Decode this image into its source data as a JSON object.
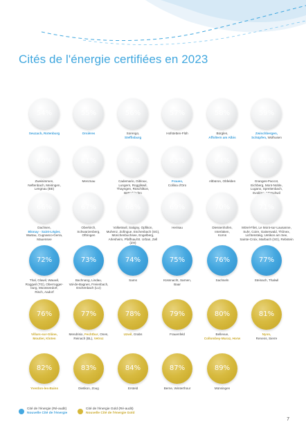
{
  "title": "Cités de l'énergie certifiées en 2023",
  "colors": {
    "blue": "#45a8e0",
    "gold": "#d6b83a",
    "grey": "#e6e7e8",
    "title": "#3ea6de"
  },
  "rows": [
    [
      {
        "pct": "54%",
        "style": "grey",
        "lines": [
          [
            {
              "t": "Seuzach, Rotenburg",
              "c": "b"
            }
          ]
        ]
      },
      {
        "pct": "55%",
        "style": "grey",
        "lines": [
          [
            {
              "t": "Orsières",
              "c": "b"
            }
          ]
        ]
      },
      {
        "pct": "56%",
        "style": "grey",
        "lines": [
          [
            {
              "t": "Sorengo,",
              "c": ""
            }
          ],
          [
            {
              "t": "Steffisburg",
              "c": "b"
            }
          ]
        ]
      },
      {
        "pct": "57%",
        "style": "grey",
        "lines": [
          [
            {
              "t": "Hofstetten-Flüh",
              "c": ""
            }
          ]
        ]
      },
      {
        "pct": "58%",
        "style": "grey",
        "lines": [
          [
            {
              "t": "Bürglen,",
              "c": ""
            }
          ],
          [
            {
              "t": "Affoltern am Albis",
              "c": "b"
            }
          ]
        ]
      },
      {
        "pct": "59%",
        "style": "grey",
        "lines": [
          [
            {
              "t": "Zwischbergen,",
              "c": "b"
            }
          ],
          [
            {
              "t": "Schüpfen,",
              "c": "b"
            },
            {
              "t": " Wolhusen",
              "c": ""
            }
          ]
        ]
      }
    ],
    [
      {
        "pct": "60%",
        "style": "grey",
        "lines": [
          [
            {
              "t": "Zweisimmen,",
              "c": ""
            }
          ],
          [
            {
              "t": "Neftenbach, Meiringen,",
              "c": ""
            }
          ],
          [
            {
              "t": "Lengnau (BE)",
              "c": ""
            }
          ]
        ]
      },
      {
        "pct": "61%",
        "style": "grey",
        "lines": [
          [
            {
              "t": "Menznau",
              "c": ""
            }
          ]
        ]
      },
      {
        "pct": "62%",
        "style": "grey",
        "lines": [
          [
            {
              "t": "Cademario, Gibloux,",
              "c": ""
            }
          ],
          [
            {
              "t": "Lungern, Roggliswil,",
              "c": ""
            }
          ],
          [
            {
              "t": "Thayngen, Rüschlikon,",
              "c": ""
            }
          ],
          [
            {
              "t": "Bätterkinden",
              "c": ""
            }
          ]
        ]
      },
      {
        "pct": "63%",
        "style": "grey",
        "lines": [
          [
            {
              "t": "Fraues,",
              "c": "b"
            }
          ],
          [
            {
              "t": "Collina d'Oro",
              "c": ""
            }
          ]
        ]
      },
      {
        "pct": "64%",
        "style": "grey",
        "lines": [
          [
            {
              "t": "Altbüron, Obfelden",
              "c": ""
            }
          ]
        ]
      },
      {
        "pct": "65%",
        "style": "grey",
        "lines": [
          [
            {
              "t": "Granges-Paccot,",
              "c": ""
            }
          ],
          [
            {
              "t": "Eichberg, Mont-Noble,",
              "c": ""
            }
          ],
          [
            {
              "t": "Lugano, Spreitenbach,",
              "c": ""
            }
          ],
          [
            {
              "t": "Evolène, Mörschwil",
              "c": ""
            }
          ]
        ]
      }
    ],
    [
      {
        "pct": "66%",
        "style": "grey",
        "lines": [
          [
            {
              "t": "Dachsen,",
              "c": ""
            }
          ],
          [
            {
              "t": "Blonay - Saint-Légier,",
              "c": "b"
            }
          ],
          [
            {
              "t": "Wartau, Cugnasco-Gerra,",
              "c": ""
            }
          ],
          [
            {
              "t": "Mauensee",
              "c": ""
            }
          ]
        ]
      },
      {
        "pct": "67%",
        "style": "grey",
        "lines": [
          [
            {
              "t": "Oberkirch,",
              "c": ""
            }
          ],
          [
            {
              "t": "Schwarzenberg,",
              "c": ""
            }
          ],
          [
            {
              "t": "Oftringen",
              "c": ""
            }
          ]
        ]
      },
      {
        "pct": "68%",
        "style": "grey",
        "lines": [
          [
            {
              "t": "Volketswil, Satigny, Opfikon,",
              "c": ""
            }
          ],
          [
            {
              "t": "Muhenz, Zofingue, Eschenbach (SG),",
              "c": ""
            }
          ],
          [
            {
              "t": "Münchenbuchsee, Engelberg,",
              "c": ""
            }
          ],
          [
            {
              "t": "Arlesheim, Pfaffnau/St. Urban, Zell (ZH)",
              "c": ""
            }
          ]
        ]
      },
      {
        "pct": "69%",
        "style": "grey",
        "lines": [
          [
            {
              "t": "Herisau",
              "c": ""
            }
          ]
        ]
      },
      {
        "pct": "70%",
        "style": "grey",
        "lines": [
          [
            {
              "t": "Diessenhofen,",
              "c": ""
            }
          ],
          [
            {
              "t": "Interlaken,",
              "c": ""
            }
          ],
          [
            {
              "t": "Korns",
              "c": ""
            }
          ]
        ]
      },
      {
        "pct": "71%",
        "style": "grey",
        "lines": [
          [
            {
              "t": "Mörel-Filet, Le Mont-sur-Lausanne,",
              "c": ""
            }
          ],
          [
            {
              "t": "Suhr, Coire, Gaiserwald, Thônex,",
              "c": ""
            }
          ],
          [
            {
              "t": "Lichtensteig, Uetikon am See,",
              "c": ""
            }
          ],
          [
            {
              "t": "Sainte-Croix, Marbach (SG), Rebstein",
              "c": ""
            }
          ]
        ]
      }
    ],
    [
      {
        "pct": "72%",
        "style": "blue",
        "lines": [
          [
            {
              "t": "Thal, Glawil, Wauwil,",
              "c": ""
            }
          ],
          [
            {
              "t": "Roggwil (TG), Oberrogger-",
              "c": ""
            }
          ],
          [
            {
              "t": "burg, Moosseedorf,",
              "c": ""
            }
          ],
          [
            {
              "t": "Risch, Aadorf",
              "c": ""
            }
          ]
        ]
      },
      {
        "pct": "73%",
        "style": "blue",
        "lines": [
          [
            {
              "t": "Bachnang, Lindau,",
              "c": ""
            }
          ],
          [
            {
              "t": "Val-de-Bagnes, Freienbach,",
              "c": ""
            }
          ],
          [
            {
              "t": "Eschenbach (LU)",
              "c": ""
            }
          ]
        ]
      },
      {
        "pct": "74%",
        "style": "blue",
        "lines": [
          [
            {
              "t": "Sams",
              "c": ""
            }
          ]
        ]
      },
      {
        "pct": "75%",
        "style": "blue",
        "lines": [
          [
            {
              "t": "Küssnacht, Sarnen,",
              "c": ""
            }
          ],
          [
            {
              "t": "Baar",
              "c": ""
            }
          ]
        ]
      },
      {
        "pct": "76%",
        "style": "blue",
        "lines": [
          [
            {
              "t": "Sachseln",
              "c": ""
            }
          ]
        ]
      },
      {
        "pct": "77%",
        "style": "blue",
        "lines": [
          [
            {
              "t": "Steinach, Thalwil",
              "c": ""
            }
          ]
        ]
      }
    ],
    [
      {
        "pct": "76%",
        "style": "gold",
        "lines": [
          [
            {
              "t": "Villars-sur-Glâne,",
              "c": "g"
            }
          ],
          [
            {
              "t": "Moutier, Kloten",
              "c": "g"
            }
          ]
        ]
      },
      {
        "pct": "77%",
        "style": "gold",
        "lines": [
          [
            {
              "t": "Mendrisio, ",
              "c": ""
            },
            {
              "t": "Fechtbur",
              "c": "g"
            },
            {
              "t": ", Ones,",
              "c": ""
            }
          ],
          [
            {
              "t": "Reinach (BL), ",
              "c": ""
            },
            {
              "t": "Vetroz",
              "c": "g"
            }
          ]
        ]
      },
      {
        "pct": "78%",
        "style": "gold",
        "lines": [
          [
            {
              "t": "Uzwil",
              "c": "g"
            },
            {
              "t": ", Grabs",
              "c": ""
            }
          ]
        ]
      },
      {
        "pct": "79%",
        "style": "gold",
        "lines": [
          [
            {
              "t": "Frauenfeld",
              "c": ""
            }
          ]
        ]
      },
      {
        "pct": "80%",
        "style": "gold",
        "lines": [
          [
            {
              "t": "Bellevue,",
              "c": ""
            }
          ],
          [
            {
              "t": "Collombey-Muraz, Horw",
              "c": "g"
            }
          ]
        ]
      },
      {
        "pct": "81%",
        "style": "gold",
        "lines": [
          [
            {
              "t": "Nyon,",
              "c": "g"
            }
          ],
          [
            {
              "t": "Renens, Sierre",
              "c": ""
            }
          ]
        ]
      }
    ],
    [
      {
        "pct": "82%",
        "style": "gold",
        "lines": [
          [
            {
              "t": "Yverdon-les-Bains",
              "c": "g"
            }
          ]
        ]
      },
      {
        "pct": "83%",
        "style": "gold",
        "lines": [
          [
            {
              "t": "Dietikon, Zoug",
              "c": ""
            }
          ]
        ]
      },
      {
        "pct": "84%",
        "style": "gold",
        "lines": [
          [
            {
              "t": "Ersteld",
              "c": ""
            }
          ]
        ]
      },
      {
        "pct": "87%",
        "style": "gold",
        "lines": [
          [
            {
              "t": "Berne, Winterthour",
              "c": ""
            }
          ]
        ]
      },
      {
        "pct": "89%",
        "style": "gold",
        "lines": [
          [
            {
              "t": "Münsingen",
              "c": ""
            }
          ]
        ]
      }
    ]
  ],
  "legend": [
    {
      "style": "blue",
      "line1": "Cité de l'énergie (Ré-audit)",
      "line2": "Nouvelle Cité de l'énergie",
      "accent": "blue"
    },
    {
      "style": "gold",
      "line1": "Cité de l'énergie Gold (Ré-audit)",
      "line2": "Nouvelle Cité de l'énergie Gold",
      "accent": "gold"
    }
  ],
  "page_number": "7"
}
